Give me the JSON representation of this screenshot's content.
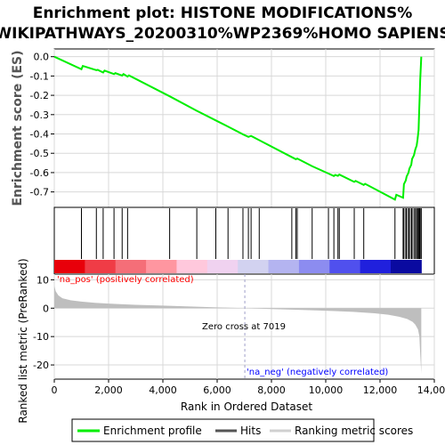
{
  "title_line1": "Enrichment plot: HISTONE MODIFICATIONS%",
  "title_line2": "WIKIPATHWAYS_20200310%WP2369%HOMO SAPIENS",
  "colors": {
    "enrichment_line": "#00ee00",
    "hit_line": "#000000",
    "metric_fill": "#bebebe",
    "pos_label": "#ff0000",
    "neg_label": "#0000ff",
    "zero_cross_line": "#a0a0c8"
  },
  "legend": {
    "enrichment_profile": "Enrichment profile",
    "hits": "Hits",
    "ranking_metric_scores": "Ranking metric scores"
  },
  "annotations": {
    "pos_label": "'na_pos' (positively correlated)",
    "neg_label": "'na_neg' (negatively correlated)",
    "zero_cross": "Zero cross at 7019"
  },
  "chart_data": [
    {
      "type": "line",
      "name": "enrichment-plot",
      "ylabel": "Enrichment score (ES)",
      "xlim": [
        0,
        14000
      ],
      "ylim": [
        -0.78,
        0.04
      ],
      "yticks": [
        0.0,
        -0.1,
        -0.2,
        -0.3,
        -0.4,
        -0.5,
        -0.6,
        -0.7
      ],
      "ytick_labels": [
        "0.0",
        "-0.1",
        "-0.2",
        "-0.3",
        "-0.4",
        "-0.5",
        "-0.6",
        "-0.7"
      ],
      "grid": true,
      "x": [
        0,
        1000,
        1050,
        1550,
        1600,
        1800,
        1850,
        2200,
        2250,
        2500,
        2550,
        2700,
        2750,
        4250,
        5250,
        5950,
        6400,
        6950,
        7150,
        7250,
        7550,
        8750,
        8900,
        8950,
        9500,
        10100,
        10300,
        10350,
        10450,
        10500,
        11050,
        11100,
        11400,
        11450,
        12550,
        12600,
        12850,
        12880,
        12950,
        12980,
        13050,
        13080,
        13150,
        13180,
        13250,
        13300,
        13350,
        13380,
        13420,
        13440,
        13460,
        13480,
        13520
      ],
      "y": [
        0.0,
        -0.065,
        -0.048,
        -0.07,
        -0.068,
        -0.082,
        -0.072,
        -0.09,
        -0.085,
        -0.098,
        -0.09,
        -0.103,
        -0.097,
        -0.205,
        -0.28,
        -0.33,
        -0.362,
        -0.402,
        -0.415,
        -0.41,
        -0.432,
        -0.52,
        -0.531,
        -0.527,
        -0.567,
        -0.605,
        -0.618,
        -0.612,
        -0.617,
        -0.61,
        -0.648,
        -0.643,
        -0.664,
        -0.658,
        -0.74,
        -0.715,
        -0.73,
        -0.66,
        -0.64,
        -0.62,
        -0.6,
        -0.58,
        -0.56,
        -0.53,
        -0.51,
        -0.48,
        -0.46,
        -0.43,
        -0.38,
        -0.29,
        -0.21,
        -0.12,
        0.0
      ]
    },
    {
      "type": "hits",
      "name": "hits-panel",
      "positions": [
        1000,
        1550,
        1800,
        2200,
        2500,
        2700,
        4250,
        5250,
        5950,
        6400,
        6950,
        7150,
        7250,
        7550,
        8750,
        8900,
        8950,
        9500,
        10100,
        10300,
        10450,
        10500,
        11050,
        11400,
        12550,
        12850,
        12880,
        12950,
        12980,
        13050,
        13080,
        13150,
        13180,
        13250,
        13300,
        13350,
        13380,
        13420,
        13440,
        13460,
        13480,
        13520
      ],
      "heat_colors": [
        "#e8000a",
        "#f03c46",
        "#f56e78",
        "#ff96a0",
        "#ffc8dc",
        "#f0d2f0",
        "#d2d2f0",
        "#b4b4f0",
        "#8c8cf0",
        "#5050ee",
        "#2020dd",
        "#0a0aa0"
      ]
    },
    {
      "type": "area",
      "name": "ranked-metric",
      "xlabel": "Rank in Ordered Dataset",
      "ylabel": "Ranked list metric (PreRanked)",
      "xlim": [
        0,
        14000
      ],
      "ylim": [
        -25,
        12
      ],
      "xticks": [
        0,
        2000,
        4000,
        6000,
        8000,
        10000,
        12000,
        14000
      ],
      "xtick_labels": [
        "0",
        "2,000",
        "4,000",
        "6,000",
        "8,000",
        "10,000",
        "12,000",
        "14,000"
      ],
      "yticks": [
        10,
        0,
        -10,
        -20
      ],
      "ytick_labels": [
        "10",
        "0",
        "-10",
        "-20"
      ],
      "grid": true,
      "zero_cross": 7019,
      "x": [
        0,
        50,
        150,
        300,
        600,
        1000,
        1500,
        2000,
        3000,
        4000,
        5000,
        6000,
        7019,
        8000,
        9000,
        10000,
        11000,
        11800,
        12300,
        12700,
        13000,
        13200,
        13300,
        13400,
        13450,
        13480,
        13520
      ],
      "y": [
        8,
        6,
        4.5,
        3.5,
        2.8,
        2.3,
        1.9,
        1.6,
        1.2,
        0.9,
        0.6,
        0.3,
        0,
        -0.3,
        -0.6,
        -0.9,
        -1.3,
        -1.8,
        -2.3,
        -3.0,
        -3.8,
        -4.8,
        -5.8,
        -7.5,
        -10,
        -16,
        -23
      ]
    }
  ]
}
